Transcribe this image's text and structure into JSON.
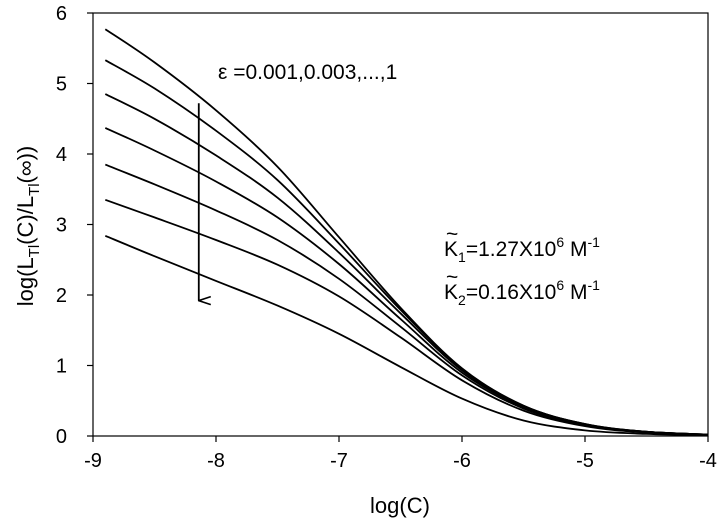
{
  "chart_data": {
    "type": "line",
    "title": "",
    "xlabel": "log(C)",
    "ylabel": "log(LTl(C)/LTl(∞))",
    "ylabel_parts": {
      "prefix": "log(L",
      "sub1": "Tl",
      "mid": "(C)/L",
      "sub2": "Tl",
      "suffix": "(∞))"
    },
    "xlim": [
      -9,
      -4
    ],
    "ylim": [
      0,
      6
    ],
    "xticks": [
      -9,
      -8,
      -7,
      -6,
      -5,
      -4
    ],
    "yticks": [
      0,
      1,
      2,
      3,
      4,
      5,
      6
    ],
    "grid": false,
    "series": [
      {
        "x": [
          -8.9,
          -8.5,
          -8,
          -7.5,
          -7,
          -6.5,
          -6,
          -5.5,
          -5,
          -4.5,
          -4
        ],
        "y": [
          5.77,
          5.3,
          4.62,
          3.82,
          2.82,
          1.82,
          0.96,
          0.43,
          0.17,
          0.06,
          0.02
        ]
      },
      {
        "x": [
          -8.9,
          -8.5,
          -8,
          -7.5,
          -7,
          -6.5,
          -6,
          -5.5,
          -5,
          -4.5,
          -4
        ],
        "y": [
          5.33,
          4.93,
          4.33,
          3.63,
          2.73,
          1.79,
          0.95,
          0.43,
          0.17,
          0.06,
          0.02
        ]
      },
      {
        "x": [
          -8.9,
          -8.5,
          -8,
          -7.5,
          -7,
          -6.5,
          -6,
          -5.5,
          -5,
          -4.5,
          -4
        ],
        "y": [
          4.85,
          4.5,
          3.98,
          3.38,
          2.6,
          1.74,
          0.93,
          0.42,
          0.16,
          0.06,
          0.02
        ]
      },
      {
        "x": [
          -8.9,
          -8.5,
          -8,
          -7.5,
          -7,
          -6.5,
          -6,
          -5.5,
          -5,
          -4.5,
          -4
        ],
        "y": [
          4.37,
          4.05,
          3.61,
          3.1,
          2.44,
          1.66,
          0.9,
          0.41,
          0.16,
          0.06,
          0.02
        ]
      },
      {
        "x": [
          -8.9,
          -8.5,
          -8,
          -7.5,
          -7,
          -6.5,
          -6,
          -5.5,
          -5,
          -4.5,
          -4
        ],
        "y": [
          3.85,
          3.57,
          3.2,
          2.78,
          2.23,
          1.55,
          0.86,
          0.39,
          0.15,
          0.05,
          0.02
        ]
      },
      {
        "x": [
          -8.9,
          -8.5,
          -8,
          -7.5,
          -7,
          -6.5,
          -6,
          -5.5,
          -5,
          -4.5,
          -4
        ],
        "y": [
          3.35,
          3.1,
          2.78,
          2.43,
          1.98,
          1.4,
          0.79,
          0.36,
          0.14,
          0.05,
          0.02
        ]
      },
      {
        "x": [
          -8.9,
          -8.5,
          -8,
          -7.5,
          -7,
          -6.5,
          -6,
          -5.5,
          -5,
          -4.5,
          -4
        ],
        "y": [
          2.84,
          2.55,
          2.2,
          1.85,
          1.45,
          0.98,
          0.53,
          0.22,
          0.08,
          0.03,
          0.01
        ]
      }
    ],
    "arrow": {
      "x": -8.14,
      "y_start": 4.72,
      "y_end": 1.92
    },
    "annotations": {
      "epsilon": {
        "prefix": "ε =",
        "value": "0.001,0.003,...,1"
      },
      "k1": {
        "tilde": "~",
        "letter": "K",
        "sub": "1",
        "body": "=1.27X10",
        "exp": "6",
        "unit": " M",
        "unit_exp": "-1"
      },
      "k2": {
        "tilde": "~",
        "letter": "K",
        "sub": "2",
        "body": "=0.16X10",
        "exp": "6",
        "unit": " M",
        "unit_exp": "-1"
      }
    }
  }
}
